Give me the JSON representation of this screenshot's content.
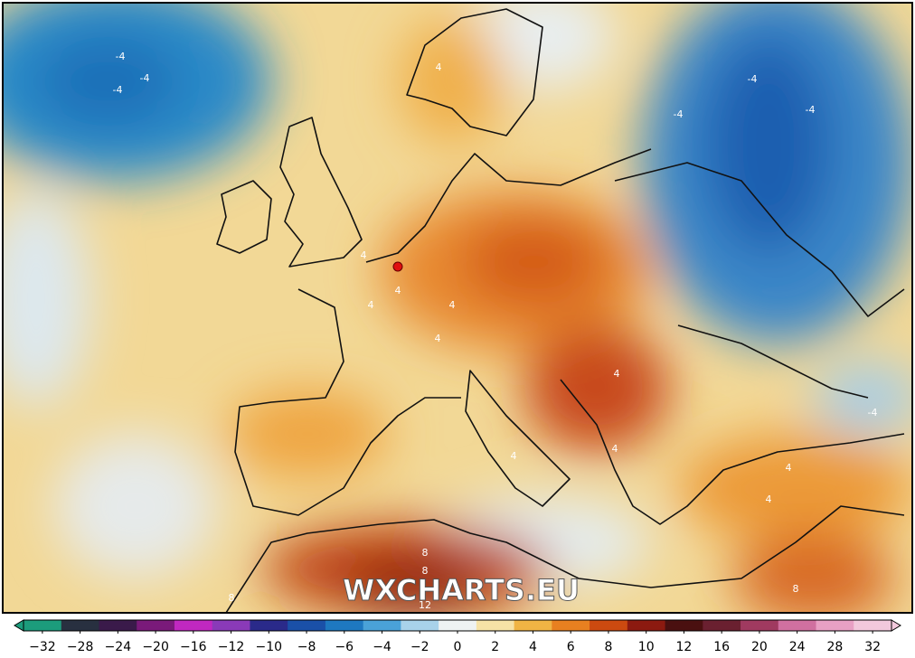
{
  "map": {
    "watermark": "WXCHARTS.EU",
    "contour_labels": [
      "-4",
      "-4",
      "-4",
      "-4",
      "-4",
      "-4",
      "4",
      "4",
      "4",
      "4",
      "4",
      "4",
      "4",
      "4",
      "4",
      "4",
      "8",
      "8",
      "8",
      "8",
      "12",
      "-4",
      "4"
    ]
  },
  "colorbar": {
    "ticks": [
      {
        "value": -32,
        "label": "−32"
      },
      {
        "value": -28,
        "label": "−28"
      },
      {
        "value": -24,
        "label": "−24"
      },
      {
        "value": -20,
        "label": "−20"
      },
      {
        "value": -16,
        "label": "−16"
      },
      {
        "value": -12,
        "label": "−12"
      },
      {
        "value": -10,
        "label": "−10"
      },
      {
        "value": -8,
        "label": "−8"
      },
      {
        "value": -6,
        "label": "−6"
      },
      {
        "value": -4,
        "label": "−4"
      },
      {
        "value": -2,
        "label": "−2"
      },
      0,
      2,
      4,
      6,
      8,
      10,
      12,
      16,
      20,
      24,
      28,
      32
    ],
    "colors": [
      "#1c9c7c",
      "#283040",
      "#3a1a4a",
      "#7a1a7a",
      "#c028c0",
      "#8a3ab8",
      "#2a2a8a",
      "#1a50a8",
      "#1e78c0",
      "#4aa2d8",
      "#a8d2ea",
      "#eef2f2",
      "#f6e2a6",
      "#f0b444",
      "#e88020",
      "#cc4a10",
      "#8c1a10",
      "#4a1010",
      "#6a2030",
      "#a03a60",
      "#d070a0",
      "#e8a0c4",
      "#f2c8dc"
    ]
  }
}
